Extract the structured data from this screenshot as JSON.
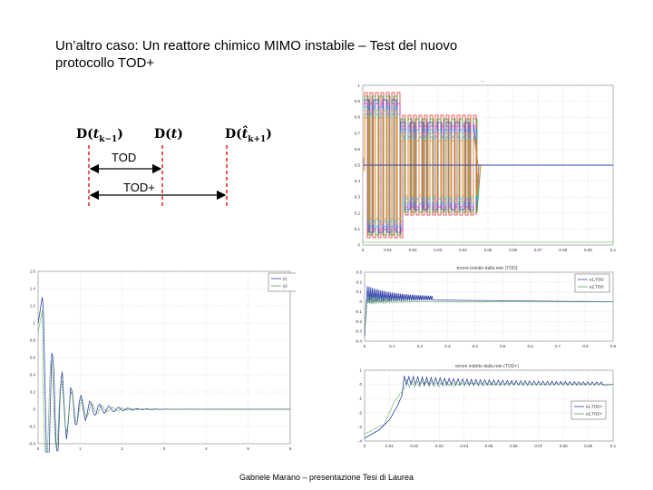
{
  "slide": {
    "title_line1": "Un’altro caso: Un reattore chimico MIMO instabile – Test del nuovo",
    "title_line2": "protocollo TOD+",
    "footer": "Gabriele Marano – presentazione Tesi di Laurea"
  },
  "diagram": {
    "label_left": "D(t_{k−1})",
    "label_mid": "D(t)",
    "label_right": "D(t̂_{k+1})",
    "arrow1_label": "TOD",
    "arrow2_label": "TOD+"
  },
  "charts": {
    "top_right": {
      "title": "..."
    },
    "mid_right": {
      "title": "errore indotto dalla rete (TOD)"
    },
    "bottom_right": {
      "title": "errore indotto dalla rete (TOD+)"
    }
  },
  "chart_data": [
    {
      "type": "line",
      "title": "",
      "x_ticks": [
        "0",
        "1",
        "2",
        "3",
        "4",
        "5",
        "6"
      ],
      "y_ticks": [
        "1.6",
        "1.4",
        "1.2",
        "1",
        "0.8",
        "0.6",
        "0.4",
        "0.2",
        "0",
        "-0.2",
        "-0.4"
      ],
      "legend": [
        "y1",
        "y2"
      ],
      "colors": [
        "#3344aa",
        "#55a055"
      ]
    },
    {
      "type": "line",
      "title": "errore indotto dalla rete (TOD)",
      "x_ticks": [
        "0",
        "0.1",
        "0.2",
        "0.3",
        "0.4",
        "0.5",
        "0.6",
        "0.7",
        "0.8",
        "0.9"
      ],
      "y_ticks": [
        "0.3",
        "0.2",
        "0.1",
        "0",
        "-0.1",
        "-0.2",
        "-0.3",
        "-0.4"
      ],
      "legend": [
        "e1,TOD",
        "e2,TOD"
      ],
      "colors": [
        "#3344aa",
        "#55a055"
      ]
    },
    {
      "type": "line",
      "title": "errore indotto dalla rete (TOD+)",
      "x_ticks": [
        "0",
        "0.01",
        "0.02",
        "0.03",
        "0.04",
        "0.05",
        "0.06",
        "0.07",
        "0.08",
        "0.09",
        "0.1"
      ],
      "y_ticks": [
        "1",
        "0",
        "-1",
        "-2",
        "-3",
        "-4"
      ],
      "legend": [
        "e1,TOD+",
        "e2,TOD+"
      ],
      "colors": [
        "#3344aa",
        "#55a055"
      ]
    }
  ]
}
